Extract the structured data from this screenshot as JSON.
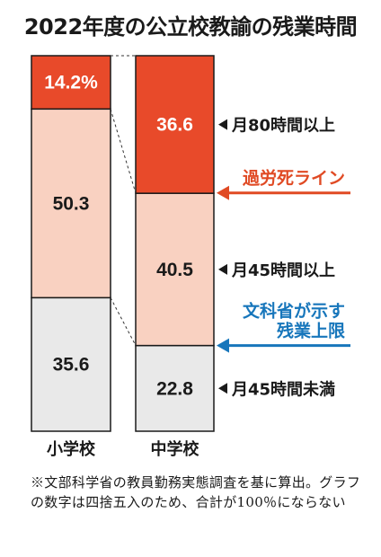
{
  "title": "2022年度の公立校教諭の残業時間",
  "colors": {
    "over80": "#e84a2a",
    "over45": "#f9d1c1",
    "under45": "#e9e9e9",
    "karoshi": "#e04a24",
    "mext": "#1776bb",
    "bar_edge": "#1a1a1a"
  },
  "chart_data": {
    "type": "bar",
    "stacked": true,
    "percent_stacked": true,
    "categories": [
      "小学校",
      "中学校"
    ],
    "series": [
      {
        "name": "月45時間未満",
        "values": [
          35.6,
          22.8
        ],
        "color": "#e9e9e9"
      },
      {
        "name": "月45時間以上",
        "values": [
          50.3,
          40.5
        ],
        "color": "#f9d1c1"
      },
      {
        "name": "月80時間以上",
        "values": [
          14.2,
          36.6
        ],
        "color": "#e84a2a"
      }
    ],
    "value_labels": [
      [
        "35.6",
        "22.8"
      ],
      [
        "50.3",
        "40.5"
      ],
      [
        "14.2%",
        "36.6"
      ]
    ],
    "annotations": [
      {
        "text": "過労死ライン",
        "at_value": 63.4,
        "color": "#e04a24"
      },
      {
        "lines": [
          "文科省が示す",
          "残業上限"
        ],
        "at_value": 22.8,
        "color": "#1776bb"
      }
    ],
    "legend_position": "right",
    "grid": false
  },
  "note": "※文部科学省の教員勤務実態調査を基に算出。グラフの数字は四捨五入のため、合計が100％にならない"
}
